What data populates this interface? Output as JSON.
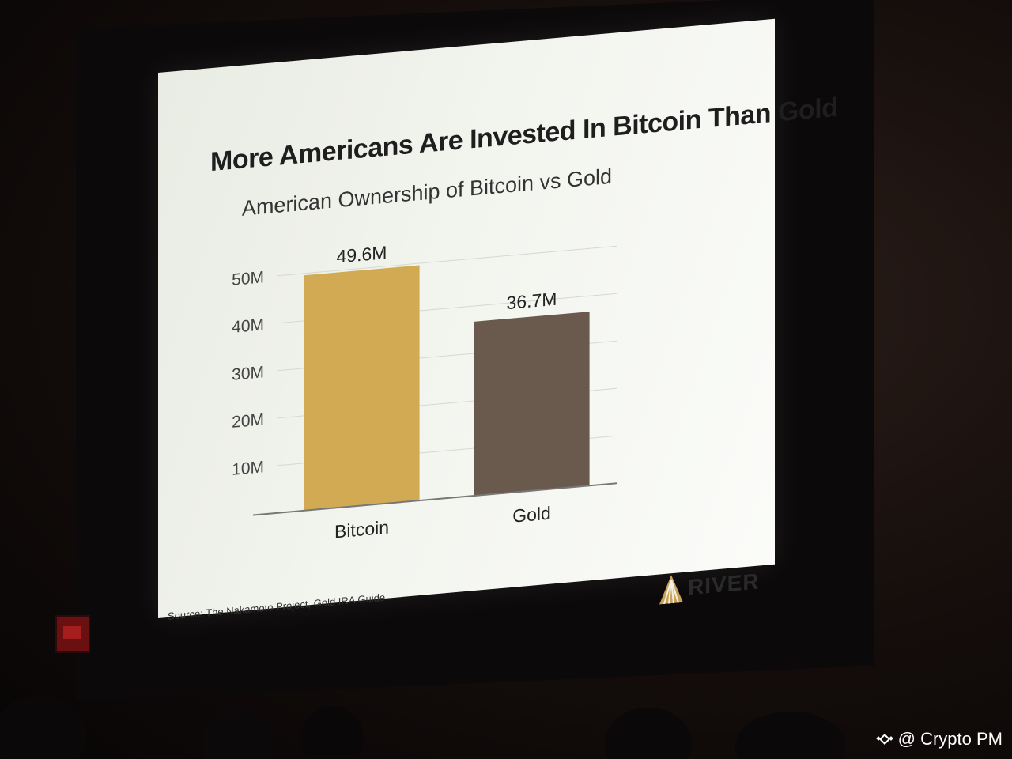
{
  "slide": {
    "title": "More Americans Are Invested In Bitcoin Than Gold",
    "source": "Source: The Nakamoto Project, Gold IRA Guide",
    "logo_text": "RIVER"
  },
  "watermark": {
    "text": "@ Crypto PM"
  },
  "colors": {
    "bitcoin": "#d2aa53",
    "gold": "#6a5a4e",
    "grid": "#d6d8d2",
    "axis": "#777777"
  },
  "chart_data": {
    "type": "bar",
    "title": "American Ownership of Bitcoin vs Gold",
    "categories": [
      "Bitcoin",
      "Gold"
    ],
    "values": [
      49.6,
      36.7
    ],
    "value_labels": [
      "49.6M",
      "36.7M"
    ],
    "yticks": [
      10,
      20,
      30,
      40,
      50
    ],
    "ytick_labels": [
      "10M",
      "20M",
      "30M",
      "40M",
      "50M"
    ],
    "ylim": [
      0,
      60
    ],
    "grid": true,
    "legend": "none"
  }
}
